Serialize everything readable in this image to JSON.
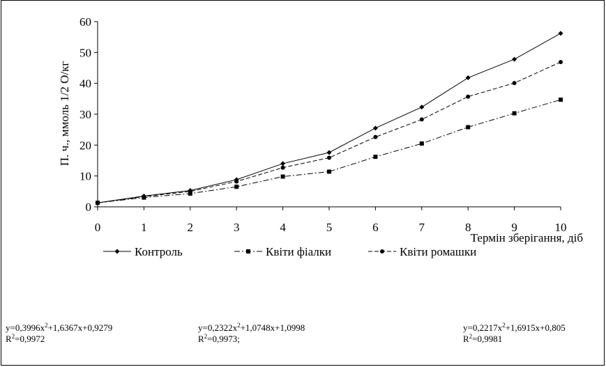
{
  "chart_data": {
    "type": "line",
    "title": "",
    "ylabel": "П. ч., ммоль 1/2 О/кг",
    "xlabel": "Термін зберігання, діб",
    "x": [
      0,
      1,
      2,
      3,
      4,
      5,
      6,
      7,
      8,
      9,
      10
    ],
    "xlim": [
      0,
      10
    ],
    "ylim": [
      0,
      60
    ],
    "yticks": [
      0,
      10,
      20,
      30,
      40,
      50,
      60
    ],
    "grid": false,
    "legend": "bottom",
    "series": [
      {
        "name": "Контроль",
        "marker": "diamond",
        "dash": "solid",
        "values": [
          1.3,
          3.5,
          5.3,
          8.8,
          14.0,
          17.6,
          25.5,
          32.3,
          41.8,
          47.8,
          56.2
        ]
      },
      {
        "name": "Квіти фіалки",
        "marker": "square",
        "dash": "dash-dot",
        "values": [
          1.3,
          3.0,
          4.3,
          6.5,
          9.8,
          11.4,
          16.2,
          20.5,
          25.8,
          30.3,
          34.7
        ]
      },
      {
        "name": "Квіти ромашки",
        "marker": "circle",
        "dash": "dash",
        "values": [
          1.3,
          3.3,
          5.0,
          8.2,
          12.7,
          15.9,
          22.6,
          28.3,
          35.7,
          40.1,
          46.9
        ]
      }
    ]
  },
  "equations": [
    {
      "eq_a": "y=0,3996x",
      "eq_b": "+1,6367x+0,9279",
      "r2_a": "R",
      "r2_b": "=0,9972"
    },
    {
      "eq_a": "y=0,2322x",
      "eq_b": "+1,0748x+1,0998",
      "r2_a": "R",
      "r2_b": "=0,9973;"
    },
    {
      "eq_a": "y=0,2217x",
      "eq_b": "+1,6915x+0,805",
      "r2_a": "R",
      "r2_b": "=0,9981"
    }
  ],
  "superscript": "2"
}
